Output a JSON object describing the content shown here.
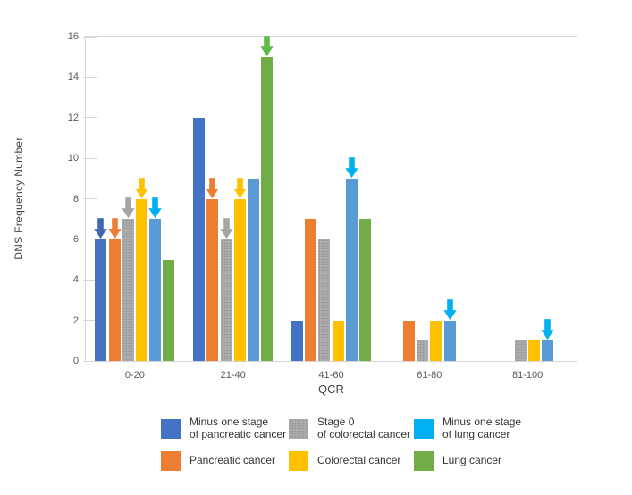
{
  "chart_data": {
    "type": "bar",
    "title": "",
    "xlabel": "QCR",
    "ylabel": "DNS Frequency Number",
    "ylim": [
      0,
      16
    ],
    "yticks": [
      0,
      2,
      4,
      6,
      8,
      10,
      12,
      14,
      16
    ],
    "grid": false,
    "legend_position": "bottom",
    "categories": [
      "0-20",
      "21-40",
      "41-60",
      "61-80",
      "81-100"
    ],
    "series": [
      {
        "name": "Minus one stage of pancreatic cancer",
        "legend_lines": [
          "Minus one stage",
          "of pancreatic cancer"
        ],
        "color": "#4472C4",
        "arrow_color": "#3E68B4",
        "values": [
          6,
          12,
          2,
          0,
          0
        ]
      },
      {
        "name": "Pancreatic cancer",
        "legend_lines": [
          "Pancreatic cancer"
        ],
        "color": "#ED7D31",
        "arrow_color": "#ED7D31",
        "values": [
          6,
          8,
          7,
          2,
          0
        ]
      },
      {
        "name": "Stage 0 of colorectal cancer",
        "legend_lines": [
          "Stage 0",
          "of colorectal cancer"
        ],
        "color": "#ABABAB",
        "pattern": "dots",
        "arrow_color": "#A5A5A5",
        "values": [
          7,
          6,
          6,
          1,
          1
        ]
      },
      {
        "name": "Colorectal cancer",
        "legend_lines": [
          "Colorectal cancer"
        ],
        "color": "#FFC000",
        "arrow_color": "#FFC000",
        "values": [
          8,
          8,
          2,
          2,
          1
        ]
      },
      {
        "name": "Minus one stage of lung cancer",
        "legend_lines": [
          "Minus one stage",
          "of lung cancer"
        ],
        "color": "#5B9BD5",
        "legend_color": "#00B0F0",
        "arrow_color": "#00B0F0",
        "values": [
          7,
          9,
          9,
          2,
          1
        ]
      },
      {
        "name": "Lung cancer",
        "legend_lines": [
          "Lung cancer"
        ],
        "color": "#70AD47",
        "arrow_color": "#5FBB46",
        "values": [
          5,
          15,
          7,
          0,
          0
        ]
      }
    ],
    "annotation_arrows": [
      {
        "category": "0-20",
        "series": "Minus one stage of pancreatic cancer",
        "ci": 0,
        "si": 0
      },
      {
        "category": "0-20",
        "series": "Pancreatic cancer",
        "ci": 0,
        "si": 1
      },
      {
        "category": "0-20",
        "series": "Stage 0 of colorectal cancer",
        "ci": 0,
        "si": 2
      },
      {
        "category": "0-20",
        "series": "Colorectal cancer",
        "ci": 0,
        "si": 3
      },
      {
        "category": "0-20",
        "series": "Minus one stage of lung cancer",
        "ci": 0,
        "si": 4
      },
      {
        "category": "21-40",
        "series": "Pancreatic cancer",
        "ci": 1,
        "si": 1
      },
      {
        "category": "21-40",
        "series": "Stage 0 of colorectal cancer",
        "ci": 1,
        "si": 2
      },
      {
        "category": "21-40",
        "series": "Colorectal cancer",
        "ci": 1,
        "si": 3
      },
      {
        "category": "21-40",
        "series": "Lung cancer",
        "ci": 1,
        "si": 5
      },
      {
        "category": "41-60",
        "series": "Minus one stage of lung cancer",
        "ci": 2,
        "si": 4
      },
      {
        "category": "61-80",
        "series": "Minus one stage of lung cancer",
        "ci": 3,
        "si": 4
      },
      {
        "category": "81-100",
        "series": "Minus one stage of lung cancer",
        "ci": 4,
        "si": 4
      }
    ]
  },
  "legend_columns": [
    [
      0,
      1
    ],
    [
      2,
      3
    ],
    [
      4,
      5
    ]
  ]
}
